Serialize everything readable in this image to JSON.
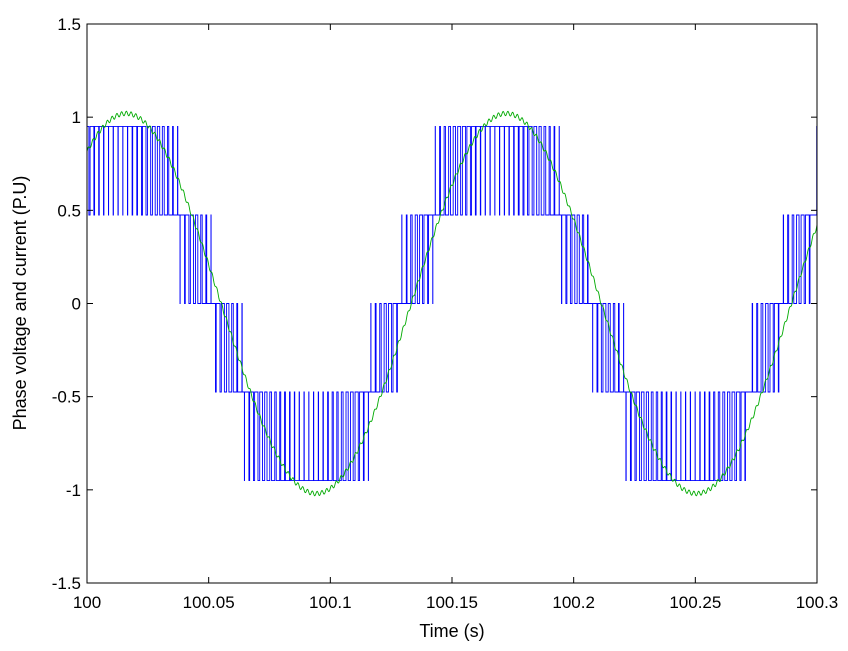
{
  "chart_data": {
    "type": "line",
    "title": "",
    "xlabel": "Time (s)",
    "ylabel": "Phase voltage and current (P.U)",
    "xlim": [
      100,
      100.3
    ],
    "ylim": [
      -1.5,
      1.5
    ],
    "grid": false,
    "legend": "none",
    "x_ticks": [
      100,
      100.05,
      100.1,
      100.15,
      100.2,
      100.25,
      100.3
    ],
    "x_tick_labels": [
      "100",
      "100.05",
      "100.1",
      "100.15",
      "100.2",
      "100.25",
      "100.3"
    ],
    "y_ticks": [
      1.5,
      1,
      0.5,
      0,
      -0.5,
      -1,
      -1.5
    ],
    "y_tick_labels": [
      "1.5",
      "1",
      "0.5",
      "0",
      "-0.5",
      "-1",
      "-1.5"
    ],
    "series": [
      {
        "kind": "multilevel PWM phase voltage",
        "color": "#0000ff",
        "levels": [
          -0.95,
          -0.475,
          0,
          0.475,
          0.95
        ],
        "fundamental_frequency_hz": 6.4,
        "fundamental_amplitude": 0.93,
        "fundamental_phase_deg": 62,
        "switching_period_s": 0.00196
      },
      {
        "kind": "sinusoidal phase current",
        "color": "#00aa00",
        "amplitude": 1.02,
        "frequency_hz": 6.4,
        "phase_deg": 53,
        "ripple_amplitude": 0.012
      }
    ]
  }
}
